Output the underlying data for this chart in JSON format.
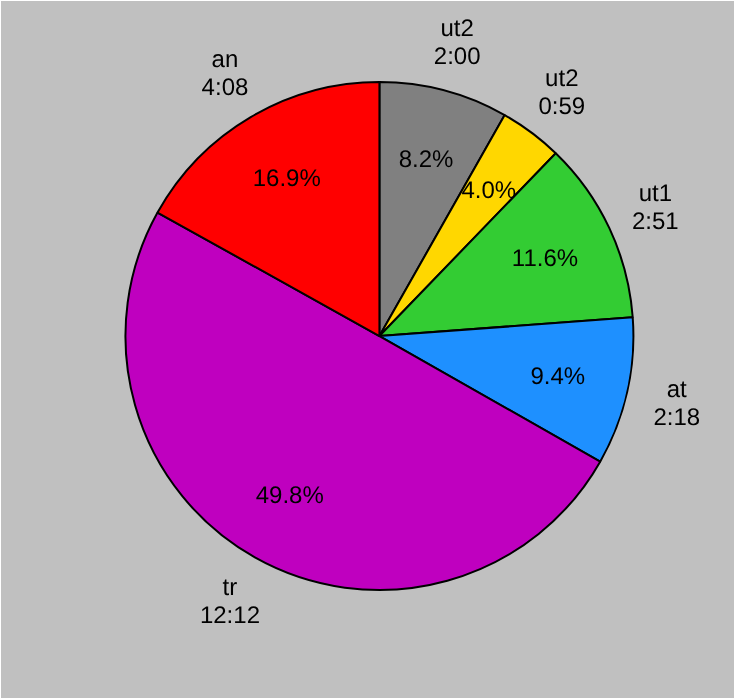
{
  "chart_data": {
    "type": "pie",
    "categories": [
      "ut2\n2:00",
      "ut2\n0:59",
      "ut1\n2:51",
      "at\n2:18",
      "tr\n12:12",
      "an\n4:08"
    ],
    "values": [
      8.2,
      4.0,
      11.6,
      9.4,
      49.8,
      16.9
    ],
    "colors": [
      "#808080",
      "#ffd700",
      "#33cc33",
      "#1e90ff",
      "#bf00bf",
      "#ff0000"
    ],
    "value_labels": [
      "8.2%",
      "4.0%",
      "11.6%",
      "9.4%",
      "49.8%",
      "16.9%"
    ]
  }
}
